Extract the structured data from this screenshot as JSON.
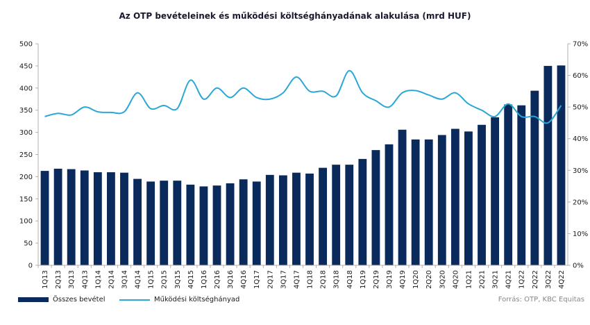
{
  "colors": {
    "bar": "#0a2a5c",
    "line": "#2aa7d6",
    "axis": "#b0b0b0"
  },
  "source_text": "Forrás: OTP, KBC Equitas",
  "chart_data": {
    "type": "bar",
    "title": "Az OTP bevételeinek  és működési költséghányadának alakulása (mrd HUF)",
    "categories": [
      "1Q13",
      "2Q13",
      "3Q13",
      "4Q13",
      "1Q14",
      "2Q14",
      "3Q14",
      "4Q14",
      "1Q15",
      "2Q15",
      "3Q15",
      "4Q15",
      "1Q16",
      "2Q16",
      "3Q16",
      "4Q16",
      "1Q17",
      "2Q17",
      "3Q17",
      "4Q17",
      "1Q18",
      "2Q18",
      "3Q18",
      "4Q18",
      "1Q19",
      "2Q19",
      "3Q19",
      "4Q19",
      "1Q20",
      "2Q20",
      "3Q20",
      "4Q20",
      "1Q21",
      "2Q21",
      "3Q21",
      "4Q21",
      "1Q22",
      "2Q22",
      "3Q22",
      "4Q22"
    ],
    "series": [
      {
        "name": "Összes bevétel",
        "type": "bar",
        "axis": "left",
        "values": [
          213,
          218,
          217,
          214,
          210,
          210,
          209,
          195,
          189,
          191,
          191,
          182,
          178,
          180,
          185,
          194,
          189,
          204,
          203,
          209,
          207,
          220,
          227,
          227,
          240,
          260,
          273,
          306,
          284,
          284,
          294,
          308,
          302,
          317,
          334,
          363,
          361,
          394,
          450,
          451
        ]
      },
      {
        "name": "Működési költséghányad",
        "type": "line",
        "axis": "right",
        "values": [
          0.47,
          0.48,
          0.475,
          0.5,
          0.485,
          0.483,
          0.485,
          0.545,
          0.495,
          0.505,
          0.495,
          0.585,
          0.525,
          0.56,
          0.53,
          0.56,
          0.53,
          0.525,
          0.545,
          0.595,
          0.55,
          0.55,
          0.535,
          0.615,
          0.545,
          0.52,
          0.5,
          0.545,
          0.552,
          0.538,
          0.525,
          0.545,
          0.51,
          0.49,
          0.47,
          0.51,
          0.47,
          0.47,
          0.45,
          0.505
        ]
      }
    ],
    "left_axis": {
      "min": 0,
      "max": 500,
      "ticks": [
        0,
        50,
        100,
        150,
        200,
        250,
        300,
        350,
        400,
        450,
        500
      ]
    },
    "right_axis": {
      "min": 0,
      "max": 0.7,
      "ticks": [
        "0%",
        "10%",
        "20%",
        "30%",
        "40%",
        "50%",
        "60%",
        "70%"
      ]
    },
    "grid": false,
    "legend": "bottom-left"
  }
}
